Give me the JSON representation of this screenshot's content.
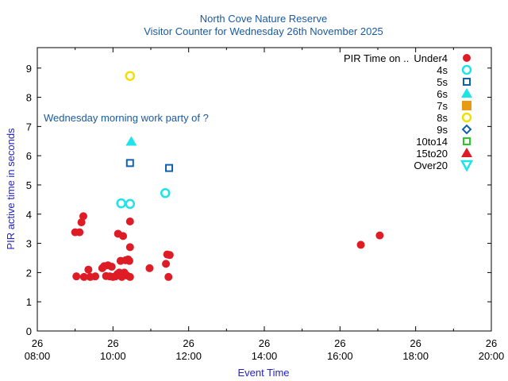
{
  "chart_data": {
    "type": "scatter",
    "title": "North Cove Nature Reserve",
    "subtitle": "Visitor Counter for Wednesday 26th November 2025",
    "xlabel": "Event Time",
    "ylabel": "PIR active time in seconds",
    "xlim": [
      "08:00",
      "20:00"
    ],
    "ylim": [
      0,
      9.7
    ],
    "x_ticks": [
      {
        "day": "26",
        "time": "08:00"
      },
      {
        "day": "26",
        "time": "10:00"
      },
      {
        "day": "26",
        "time": "12:00"
      },
      {
        "day": "26",
        "time": "14:00"
      },
      {
        "day": "26",
        "time": "16:00"
      },
      {
        "day": "26",
        "time": "18:00"
      },
      {
        "day": "26",
        "time": "20:00"
      }
    ],
    "y_ticks": [
      "0",
      "1",
      "2",
      "3",
      "4",
      "5",
      "6",
      "7",
      "8",
      "9"
    ],
    "annotation": "Wednesday morning work party of ?",
    "legend_title": "PIR Time on .. ",
    "colors": {
      "red": "#dd1c26",
      "cyan": "#1ce4e8",
      "blue": "#1060b0",
      "orange": "#e89a10",
      "yellow": "#f0e000",
      "green": "#22cc22",
      "title": "#1a5aa0",
      "axis_label": "#2222cc"
    },
    "series": [
      {
        "name": "Under4",
        "marker": "filled-circle",
        "color": "#dd1c26",
        "points": [
          {
            "x": "09:00",
            "y": 3.38
          },
          {
            "x": "09:07",
            "y": 3.38
          },
          {
            "x": "09:10",
            "y": 3.72
          },
          {
            "x": "09:13",
            "y": 3.93
          },
          {
            "x": "09:02",
            "y": 1.87
          },
          {
            "x": "09:14",
            "y": 1.85
          },
          {
            "x": "09:21",
            "y": 2.1
          },
          {
            "x": "09:24",
            "y": 1.85
          },
          {
            "x": "09:32",
            "y": 1.87
          },
          {
            "x": "09:43",
            "y": 2.15
          },
          {
            "x": "09:46",
            "y": 2.22
          },
          {
            "x": "09:49",
            "y": 1.88
          },
          {
            "x": "09:52",
            "y": 2.25
          },
          {
            "x": "09:55",
            "y": 1.87
          },
          {
            "x": "09:58",
            "y": 2.2
          },
          {
            "x": "10:00",
            "y": 1.85
          },
          {
            "x": "10:04",
            "y": 1.87
          },
          {
            "x": "10:07",
            "y": 1.95
          },
          {
            "x": "10:08",
            "y": 3.33
          },
          {
            "x": "10:10",
            "y": 2.0
          },
          {
            "x": "10:12",
            "y": 2.4
          },
          {
            "x": "10:14",
            "y": 1.85
          },
          {
            "x": "10:16",
            "y": 3.25
          },
          {
            "x": "10:18",
            "y": 2.0
          },
          {
            "x": "10:20",
            "y": 2.42
          },
          {
            "x": "10:22",
            "y": 1.9
          },
          {
            "x": "10:24",
            "y": 2.45
          },
          {
            "x": "10:26",
            "y": 2.4
          },
          {
            "x": "10:27",
            "y": 1.85
          },
          {
            "x": "10:27",
            "y": 3.75
          },
          {
            "x": "10:27",
            "y": 2.87
          },
          {
            "x": "10:58",
            "y": 2.15
          },
          {
            "x": "11:24",
            "y": 2.3
          },
          {
            "x": "11:26",
            "y": 2.62
          },
          {
            "x": "11:28",
            "y": 1.85
          },
          {
            "x": "11:30",
            "y": 2.6
          },
          {
            "x": "16:33",
            "y": 2.95
          },
          {
            "x": "17:03",
            "y": 3.27
          }
        ]
      },
      {
        "name": "4s",
        "marker": "open-circle",
        "color": "#1ce4e8",
        "points": [
          {
            "x": "10:13",
            "y": 4.37
          },
          {
            "x": "10:27",
            "y": 4.35
          },
          {
            "x": "11:23",
            "y": 4.72
          }
        ]
      },
      {
        "name": "5s",
        "marker": "open-square",
        "color": "#1060b0",
        "points": [
          {
            "x": "10:27",
            "y": 5.75
          },
          {
            "x": "11:29",
            "y": 5.58
          }
        ]
      },
      {
        "name": "6s",
        "marker": "filled-triangle-up",
        "color": "#1ce4e8",
        "points": [
          {
            "x": "10:29",
            "y": 6.48
          }
        ]
      },
      {
        "name": "7s",
        "marker": "filled-square",
        "color": "#e89a10",
        "points": []
      },
      {
        "name": "8s",
        "marker": "open-circle",
        "color": "#f0e000",
        "points": [
          {
            "x": "10:27",
            "y": 8.73
          }
        ]
      },
      {
        "name": "9s",
        "marker": "open-diamond",
        "color": "#1060b0",
        "points": []
      },
      {
        "name": "10to14",
        "marker": "open-square",
        "color": "#22cc22",
        "points": []
      },
      {
        "name": "15to20",
        "marker": "filled-triangle-up",
        "color": "#dd1c26",
        "points": []
      },
      {
        "name": "Over20",
        "marker": "open-triangle-down",
        "color": "#1ce4e8",
        "points": []
      }
    ]
  }
}
